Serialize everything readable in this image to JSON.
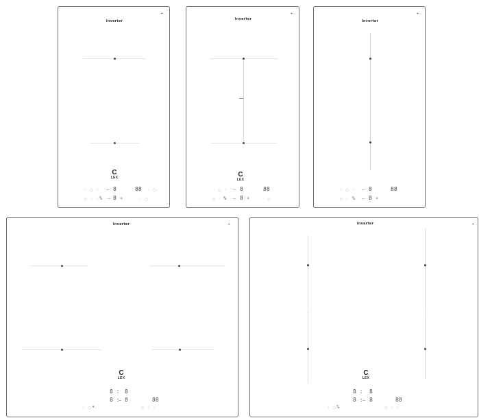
{
  "brand": "Inverter",
  "corner_glyph": "⌖",
  "logo": {
    "symbol": "C",
    "text": "LEX"
  },
  "controls": {
    "faint_row_a": "◦ ○ ·",
    "faint_row_b": "○ ◦ ·",
    "faint_right": "◦ ○",
    "timer": "88",
    "digit": "8",
    "minus": "–",
    "plus": "+",
    "dot": "•",
    "digit_colon": "8 :",
    "small_sym": "%"
  },
  "panels": [
    {
      "id": "panel-2-zone-horizontal",
      "zones": 2,
      "layout": "horizontal"
    },
    {
      "id": "panel-2-zone-bridge",
      "zones": 2,
      "layout": "bridge"
    },
    {
      "id": "panel-2-zone-vertical",
      "zones": 2,
      "layout": "vertical"
    },
    {
      "id": "panel-4-zone-horizontal",
      "zones": 4,
      "layout": "horizontal"
    },
    {
      "id": "panel-4-zone-vertical",
      "zones": 4,
      "layout": "vertical"
    }
  ]
}
